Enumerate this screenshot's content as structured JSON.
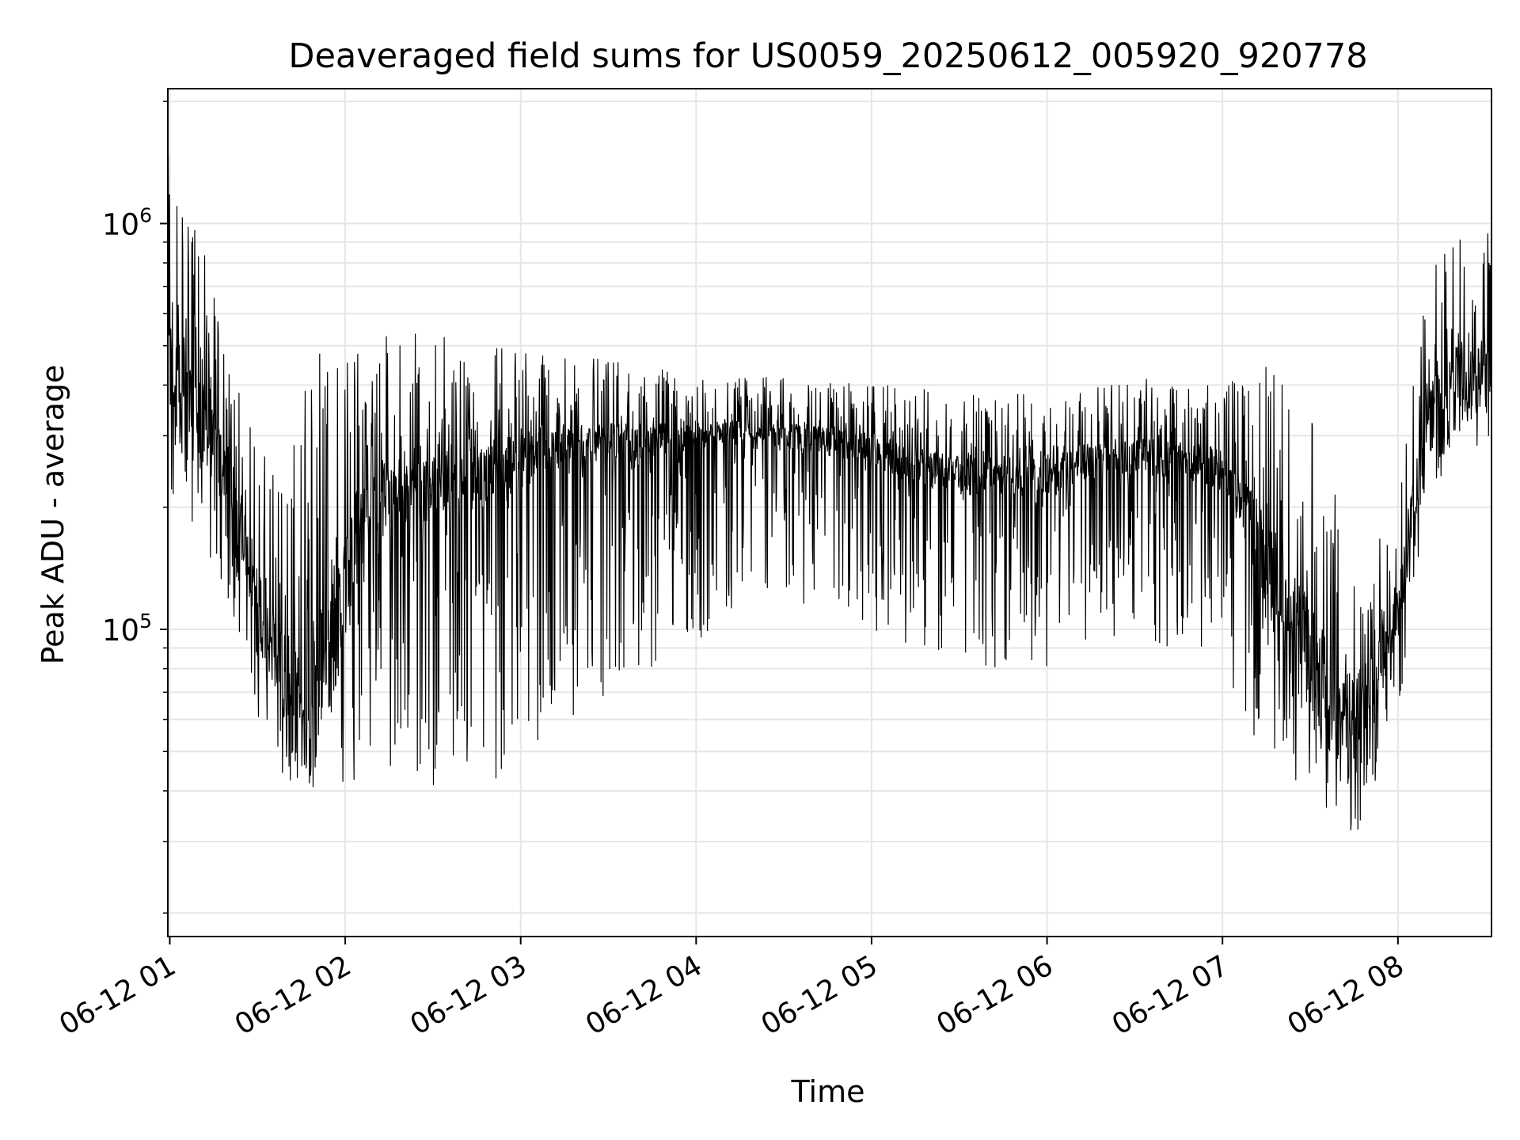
{
  "chart_data": {
    "type": "line",
    "title": "Deaveraged field sums for US0059_20250612_005920_920778",
    "xlabel": "Time",
    "ylabel": "Peak ADU - average",
    "yscale": "log",
    "grid": true,
    "line_color": "#000000",
    "grid_color": "#e6e6e6",
    "xlim": [
      "2025-06-12 00:59:20",
      "2025-06-12 08:32:00"
    ],
    "ylim": [
      17500,
      2150000
    ],
    "x_ticks": [
      {
        "value": "2025-06-12 01:00",
        "label": "06-12 01"
      },
      {
        "value": "2025-06-12 02:00",
        "label": "06-12 02"
      },
      {
        "value": "2025-06-12 03:00",
        "label": "06-12 03"
      },
      {
        "value": "2025-06-12 04:00",
        "label": "06-12 04"
      },
      {
        "value": "2025-06-12 05:00",
        "label": "06-12 05"
      },
      {
        "value": "2025-06-12 06:00",
        "label": "06-12 06"
      },
      {
        "value": "2025-06-12 07:00",
        "label": "06-12 07"
      },
      {
        "value": "2025-06-12 08:00",
        "label": "06-12 08"
      }
    ],
    "y_major_ticks": [
      {
        "value": 100000,
        "label_base": "10",
        "label_exp": "5"
      },
      {
        "value": 1000000,
        "label_base": "10",
        "label_exp": "6"
      }
    ],
    "series": [
      {
        "times": [
          "2025-06-12 00:59:20",
          "2025-06-12 01:10",
          "2025-06-12 01:20",
          "2025-06-12 01:30",
          "2025-06-12 01:40",
          "2025-06-12 01:50",
          "2025-06-12 02:00",
          "2025-06-12 02:15",
          "2025-06-12 02:30",
          "2025-06-12 02:45",
          "2025-06-12 03:00",
          "2025-06-12 03:15",
          "2025-06-12 03:30",
          "2025-06-12 03:45",
          "2025-06-12 04:00",
          "2025-06-12 04:15",
          "2025-06-12 04:30",
          "2025-06-12 04:45",
          "2025-06-12 05:00",
          "2025-06-12 05:15",
          "2025-06-12 05:30",
          "2025-06-12 05:45",
          "2025-06-12 06:00",
          "2025-06-12 06:15",
          "2025-06-12 06:30",
          "2025-06-12 06:45",
          "2025-06-12 07:00",
          "2025-06-12 07:15",
          "2025-06-12 07:30",
          "2025-06-12 07:45",
          "2025-06-12 08:00",
          "2025-06-12 08:10",
          "2025-06-12 08:20",
          "2025-06-12 08:32"
        ],
        "upper": [
          1500000,
          1000000,
          450000,
          300000,
          250000,
          550000,
          500000,
          550000,
          550000,
          520000,
          500000,
          480000,
          460000,
          440000,
          430000,
          420000,
          420000,
          410000,
          400000,
          400000,
          380000,
          380000,
          380000,
          400000,
          420000,
          400000,
          400000,
          450000,
          350000,
          150000,
          200000,
          800000,
          950000,
          1000000
        ],
        "median": [
          420000,
          330000,
          240000,
          120000,
          70000,
          65000,
          140000,
          220000,
          230000,
          240000,
          260000,
          280000,
          290000,
          290000,
          300000,
          300000,
          300000,
          290000,
          280000,
          250000,
          240000,
          240000,
          240000,
          260000,
          270000,
          260000,
          250000,
          150000,
          80000,
          60000,
          110000,
          320000,
          380000,
          420000
        ],
        "lower": [
          200000,
          180000,
          100000,
          60000,
          42000,
          40000,
          40000,
          42000,
          40000,
          40000,
          45000,
          55000,
          70000,
          80000,
          90000,
          110000,
          120000,
          110000,
          100000,
          90000,
          80000,
          75000,
          80000,
          90000,
          100000,
          80000,
          70000,
          45000,
          40000,
          30000,
          60000,
          220000,
          260000,
          300000
        ]
      }
    ]
  }
}
